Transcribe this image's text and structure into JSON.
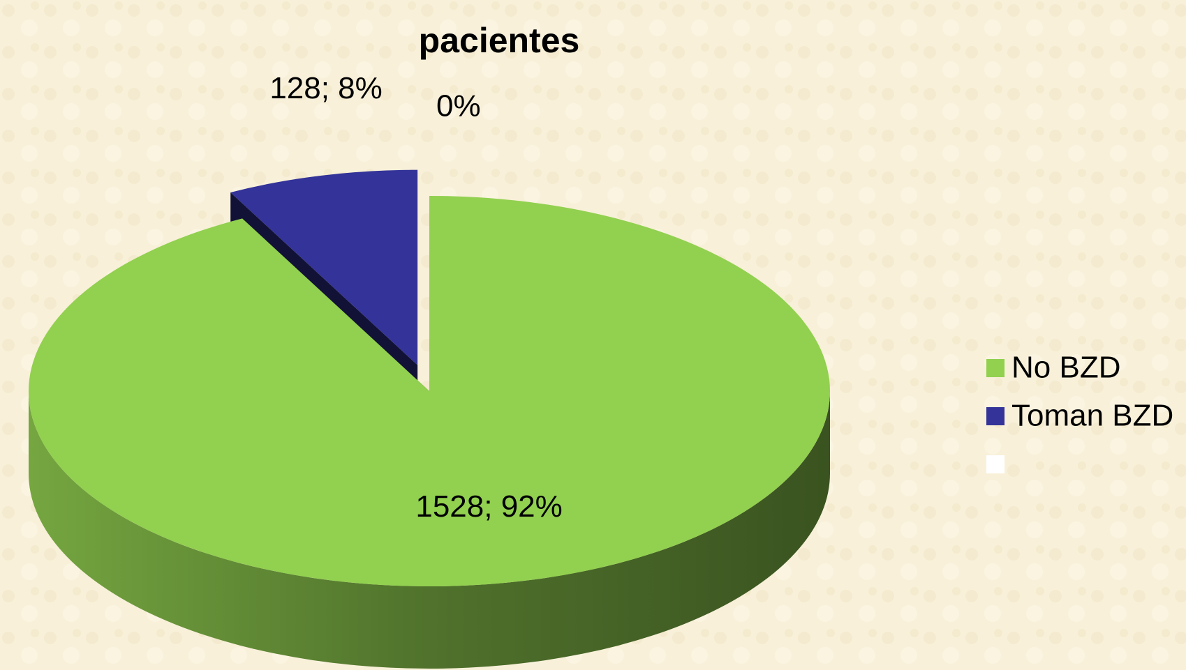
{
  "chart_data": {
    "type": "pie",
    "title": "pacientes",
    "categories": [
      "No BZD",
      "Toman BZD",
      null
    ],
    "values": [
      1528,
      128,
      0
    ],
    "value_labels": [
      "1528; 92%",
      "128; 8%",
      "0%"
    ],
    "colors": [
      "#92d050",
      "#333399",
      "#ffffff"
    ],
    "legend": "right"
  }
}
